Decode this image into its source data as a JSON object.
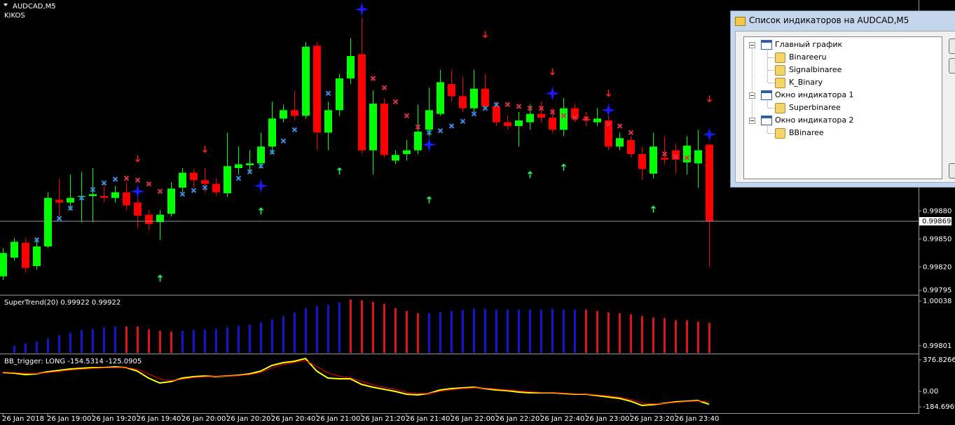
{
  "window": {
    "symbol_title": "AUDCAD,M5",
    "label": "KIKOS"
  },
  "chart_data": [
    {
      "type": "candlestick",
      "categories": [
        "26 Jan 2018",
        null,
        null,
        null,
        "26 Jan 19:00",
        null,
        null,
        null,
        "26 Jan 19:20",
        null,
        null,
        null,
        "26 Jan 19:40",
        null,
        null,
        null,
        "26 Jan 20:00",
        null,
        null,
        null,
        "26 Jan 20:20",
        null,
        null,
        null,
        "26 Jan 20:40",
        null,
        null,
        null,
        "26 Jan 21:00",
        null,
        null,
        null,
        "26 Jan 21:20",
        null,
        null,
        null,
        "26 Jan 21:40",
        null,
        null,
        null,
        "26 Jan 22:00",
        null,
        null,
        null,
        "26 Jan 22:20",
        null,
        null,
        null,
        "26 Jan 22:40",
        null,
        null,
        null,
        "26 Jan 23:00",
        null,
        null,
        null,
        "26 Jan 23:20",
        null,
        null,
        null,
        "26 Jan 23:40",
        null,
        null,
        null
      ],
      "open": [
        0.9981,
        0.9983,
        0.99846,
        0.99821,
        0.99842,
        0.99892,
        0.99889,
        0.99895,
        0.99896,
        0.99896,
        0.99894,
        0.999,
        0.99889,
        0.99876,
        0.99868,
        0.99877,
        0.99905,
        0.99921,
        0.99913,
        0.99909,
        0.99899,
        0.99926,
        0.99929,
        0.99931,
        0.99949,
        0.99979,
        0.99988,
        0.99982,
        1.00057,
        0.99964,
        0.99988,
        1.00022,
        1.00048,
        0.99945,
        0.99995,
        0.99934,
        0.99941,
        0.99945,
        0.99967,
        0.99984,
        1.00016,
        1.00003,
        0.9999,
        1.00011,
        0.99992,
        0.99975,
        0.99971,
        0.99975,
        0.99984,
        0.9998,
        0.99967,
        0.9999,
        0.99979,
        0.99975,
        0.99977,
        0.99949,
        0.99956,
        0.99941,
        0.9992,
        0.99937,
        0.99945,
        0.99932,
        0.99931,
        0.99951
      ],
      "high": [
        0.9984,
        0.99851,
        0.99851,
        0.99851,
        0.999,
        0.99915,
        0.99919,
        0.99922,
        0.99926,
        0.99911,
        0.99907,
        0.9991,
        0.99896,
        0.99881,
        0.99881,
        0.99911,
        0.99926,
        0.99925,
        0.99926,
        0.99915,
        0.99964,
        0.99949,
        0.99945,
        0.99964,
        0.99997,
        0.99994,
        1.00009,
        1.00061,
        1.00061,
        0.99997,
        1.00027,
        1.00065,
        1.00087,
        1.00009,
        1.00001,
        0.99945,
        0.99956,
        0.99994,
        1.00012,
        1.00031,
        1.00031,
        1.00024,
        1.00031,
        1.00027,
        0.99997,
        0.99982,
        0.99986,
        0.99994,
        0.99997,
        0.9999,
        1.00001,
        0.99994,
        0.99986,
        0.9999,
        0.99986,
        0.99964,
        0.9996,
        0.99949,
        0.99964,
        0.9996,
        0.99952,
        0.9996,
        0.99967,
        0.99952
      ],
      "low": [
        0.99806,
        0.99827,
        0.99814,
        0.99817,
        0.9984,
        0.99874,
        0.99881,
        0.99868,
        0.99868,
        0.99889,
        0.99889,
        0.99881,
        0.99862,
        0.99859,
        0.99849,
        0.99874,
        0.999,
        0.99905,
        0.999,
        0.99896,
        0.99895,
        0.99919,
        0.99922,
        0.99926,
        0.99941,
        0.99975,
        0.99977,
        0.99979,
        0.99945,
        0.99945,
        0.99982,
        1.00016,
        0.99941,
        0.99919,
        0.99937,
        0.9993,
        0.99934,
        0.99941,
        0.9996,
        0.99982,
        0.99997,
        0.99986,
        0.99986,
        0.9999,
        0.99971,
        0.99967,
        0.99949,
        0.99967,
        0.99975,
        0.99964,
        0.9996,
        0.99975,
        0.99971,
        0.99971,
        0.99945,
        0.99945,
        0.99937,
        0.99913,
        0.99915,
        0.9993,
        0.9992,
        0.99919,
        0.99905,
        0.9982
      ],
      "close": [
        0.99835,
        0.99847,
        0.99819,
        0.99842,
        0.99894,
        0.99889,
        0.99894,
        0.99896,
        0.99898,
        0.99894,
        0.999,
        0.99886,
        0.99875,
        0.99866,
        0.99876,
        0.99904,
        0.99921,
        0.99913,
        0.99909,
        0.999,
        0.99928,
        0.9993,
        0.99931,
        0.99949,
        0.99979,
        0.99988,
        0.99982,
        1.00056,
        0.99964,
        0.99988,
        1.00022,
        1.00046,
        0.99945,
        0.99995,
        0.9994,
        0.9994,
        0.99945,
        0.99965,
        0.99988,
        1.00018,
        1.00003,
        0.9999,
        1.00011,
        0.99992,
        0.99975,
        0.99971,
        0.99977,
        0.99984,
        0.9998,
        0.99967,
        0.9999,
        0.99979,
        0.99977,
        0.99979,
        0.99949,
        0.99958,
        0.99941,
        0.99925,
        0.99949,
        0.99935,
        0.99935,
        0.9995,
        0.99945,
        0.99869
      ],
      "up_color": "#00ff00",
      "down_color": "#ff0000",
      "ylim": [
        0.99791,
        1.00106
      ],
      "yticks": [
        {
          "value": 0.9988,
          "label": "0.99880"
        },
        {
          "value": 0.9985,
          "label": "0.99850"
        },
        {
          "value": 0.9982,
          "label": "0.99820"
        },
        0.99795
      ],
      "current_price": {
        "value": 0.99869,
        "label": "0.99869"
      },
      "overlays": [
        {
          "marker": "cross",
          "color": "#3a8fe8",
          "values": [
            null,
            null,
            null,
            0.99849,
            null,
            0.99872,
            0.99883,
            0.99894,
            0.99903,
            0.9991,
            0.99914,
            null,
            null,
            null,
            null,
            null,
            0.99898,
            0.99902,
            0.99905,
            null,
            null,
            0.99915,
            0.99922,
            0.99928,
            0.99943,
            0.99955,
            0.99967,
            null,
            null,
            1.00006,
            null,
            null,
            null,
            null,
            null,
            null,
            null,
            null,
            0.99964,
            0.99966,
            0.99971,
            0.99976,
            0.99984,
            0.9999,
            0.99994,
            null,
            null,
            null,
            null,
            null,
            null,
            null,
            null,
            null,
            null,
            null,
            null,
            null,
            null,
            null,
            null,
            null,
            null,
            null
          ]
        },
        {
          "marker": "cross",
          "color": "#e0304a",
          "values": [
            null,
            null,
            null,
            null,
            null,
            null,
            null,
            null,
            null,
            null,
            null,
            0.99915,
            0.99913,
            0.99909,
            0.99901,
            null,
            null,
            null,
            null,
            null,
            null,
            null,
            null,
            null,
            null,
            null,
            null,
            null,
            null,
            null,
            null,
            null,
            null,
            1.00022,
            1.00012,
            0.99997,
            0.99982,
            0.9997,
            null,
            null,
            null,
            null,
            null,
            null,
            null,
            0.99994,
            0.99992,
            0.9999,
            0.9999,
            0.99986,
            0.99982,
            0.9998,
            0.99979,
            null,
            0.99973,
            0.99971,
            0.99964,
            null,
            null,
            0.99941,
            0.99938,
            0.99937,
            null,
            null
          ]
        },
        {
          "marker": "star",
          "color": "#1a1aff",
          "values": [
            null,
            null,
            null,
            null,
            null,
            null,
            null,
            null,
            null,
            null,
            null,
            null,
            0.99901,
            null,
            null,
            null,
            null,
            null,
            null,
            null,
            null,
            null,
            null,
            0.99907,
            null,
            null,
            null,
            null,
            null,
            null,
            null,
            null,
            1.00096,
            null,
            null,
            null,
            null,
            null,
            0.99951,
            null,
            null,
            null,
            null,
            null,
            null,
            null,
            null,
            null,
            null,
            1.00006,
            null,
            null,
            null,
            null,
            0.99988,
            null,
            null,
            null,
            null,
            null,
            null,
            null,
            null,
            0.99962
          ]
        },
        {
          "marker": "arrow_down",
          "color": "#ff2020",
          "values": [
            null,
            null,
            null,
            null,
            null,
            null,
            null,
            null,
            null,
            null,
            null,
            null,
            0.99933,
            null,
            null,
            null,
            null,
            null,
            0.99943,
            null,
            null,
            null,
            null,
            null,
            null,
            null,
            null,
            null,
            null,
            null,
            null,
            null,
            null,
            null,
            null,
            null,
            null,
            null,
            null,
            null,
            null,
            null,
            null,
            1.00066,
            null,
            null,
            null,
            null,
            null,
            1.00026,
            null,
            null,
            null,
            null,
            1.00003,
            null,
            null,
            null,
            null,
            null,
            null,
            null,
            null,
            0.99997
          ]
        },
        {
          "marker": "arrow_up",
          "color": "#22ff66",
          "values": [
            null,
            null,
            null,
            null,
            null,
            null,
            null,
            null,
            null,
            null,
            null,
            null,
            null,
            null,
            0.99811,
            null,
            null,
            null,
            null,
            null,
            null,
            null,
            null,
            0.99883,
            null,
            null,
            null,
            null,
            null,
            null,
            0.99926,
            null,
            null,
            null,
            null,
            null,
            null,
            null,
            0.99895,
            null,
            null,
            null,
            null,
            null,
            null,
            null,
            null,
            0.99922,
            null,
            null,
            0.9993,
            null,
            null,
            null,
            null,
            null,
            null,
            null,
            0.99885,
            null,
            null,
            null,
            null,
            null
          ]
        }
      ]
    },
    {
      "type": "bar",
      "title": "SuperTrend(20) 0.99922 0.99922",
      "ylim": [
        0.99763,
        1.00064
      ],
      "yticks": [
        1.00038,
        0.99801
      ],
      "series": [
        {
          "color": "#1414d2",
          "values": [
            null,
            0.99801,
            0.99812,
            0.99824,
            0.99839,
            0.99857,
            0.99869,
            0.99884,
            0.99891,
            0.99899,
            0.99903,
            null,
            null,
            null,
            null,
            null,
            0.9988,
            0.99884,
            0.99888,
            0.99891,
            0.99899,
            0.99906,
            0.99914,
            0.99925,
            0.9994,
            0.99959,
            0.99978,
            1.0,
            1.00012,
            1.00019,
            1.0003,
            null,
            null,
            null,
            null,
            null,
            null,
            null,
            0.99974,
            0.99978,
            0.99985,
            0.99989,
            0.99997,
            0.99997,
            0.99993,
            0.99993,
            0.99993,
            0.99993,
            0.99993,
            0.99997,
            0.99993,
            0.99993,
            null,
            null,
            null,
            null,
            null,
            null,
            null,
            null,
            null,
            null,
            null,
            null
          ]
        },
        {
          "color": "#e01414",
          "values": [
            null,
            null,
            null,
            null,
            null,
            null,
            null,
            null,
            null,
            null,
            null,
            0.99903,
            0.99903,
            0.99888,
            0.9988,
            0.99876,
            null,
            null,
            null,
            null,
            null,
            null,
            null,
            null,
            null,
            null,
            null,
            null,
            null,
            null,
            null,
            1.00046,
            1.00042,
            1.00034,
            1.00023,
            1.0,
            0.99985,
            0.99974,
            null,
            null,
            null,
            null,
            null,
            null,
            null,
            null,
            null,
            null,
            null,
            null,
            null,
            null,
            0.99993,
            0.99985,
            0.99978,
            0.99974,
            0.99967,
            0.99959,
            0.99951,
            0.99948,
            0.99936,
            0.99936,
            0.99929,
            0.99922
          ]
        }
      ]
    },
    {
      "type": "line",
      "title": "BB_trigger: LONG -154.5314 -125.0905",
      "ylim": [
        -259.6,
        435.4
      ],
      "yticks": [
        376.8266,
        {
          "value": 0,
          "label": "0.00"
        },
        -184.6969
      ],
      "series": [
        {
          "color": "#ffff00",
          "width": 2,
          "values": [
            226.1,
            217.7,
            201.0,
            209.4,
            234.5,
            251.2,
            268.0,
            276.3,
            284.7,
            284.7,
            293.1,
            284.7,
            242.8,
            159.1,
            100.5,
            117.2,
            159.1,
            175.9,
            184.2,
            175.9,
            184.2,
            192.6,
            209.4,
            242.8,
            309.8,
            343.3,
            360.1,
            393.6,
            242.8,
            159.1,
            150.7,
            150.7,
            83.7,
            50.2,
            25.1,
            0,
            -33.5,
            -41.9,
            -25.1,
            16.7,
            33.5,
            41.9,
            50.2,
            33.5,
            16.7,
            8.4,
            -8.4,
            -16.7,
            -16.7,
            -16.7,
            -25.1,
            -33.5,
            -33.5,
            -50.2,
            -67.0,
            -83.7,
            -117.2,
            -167.5,
            -159.1,
            -142.4,
            -125.6,
            -117.2,
            -108.9,
            -154.5314
          ]
        },
        {
          "color": "#ff0000",
          "width": 1,
          "values": [
            230,
            225,
            215,
            212,
            225,
            240,
            255,
            265,
            275,
            280,
            285,
            285,
            265,
            210,
            150,
            130,
            145,
            165,
            175,
            178,
            182,
            188,
            200,
            225,
            280,
            320,
            345,
            370,
            300,
            220,
            180,
            165,
            120,
            80,
            50,
            25,
            -10,
            -25,
            -25,
            0,
            20,
            33,
            42,
            40,
            28,
            18,
            5,
            -5,
            -12,
            -15,
            -20,
            -28,
            -32,
            -42,
            -55,
            -70,
            -95,
            -140,
            -150,
            -145,
            -132,
            -122,
            -115,
            -125.0905
          ]
        }
      ]
    }
  ],
  "dialog": {
    "title": "Список индикаторов на AUDCAD,M5",
    "tree": [
      {
        "label": "Главный график",
        "children": [
          "Binareeru",
          "Signalbinaree",
          "K_Binary"
        ]
      },
      {
        "label": "Окно индикатора 1",
        "children": [
          "Superbinaree"
        ]
      },
      {
        "label": "Окно индикатора 2",
        "children": [
          "BBinaree"
        ]
      }
    ]
  }
}
